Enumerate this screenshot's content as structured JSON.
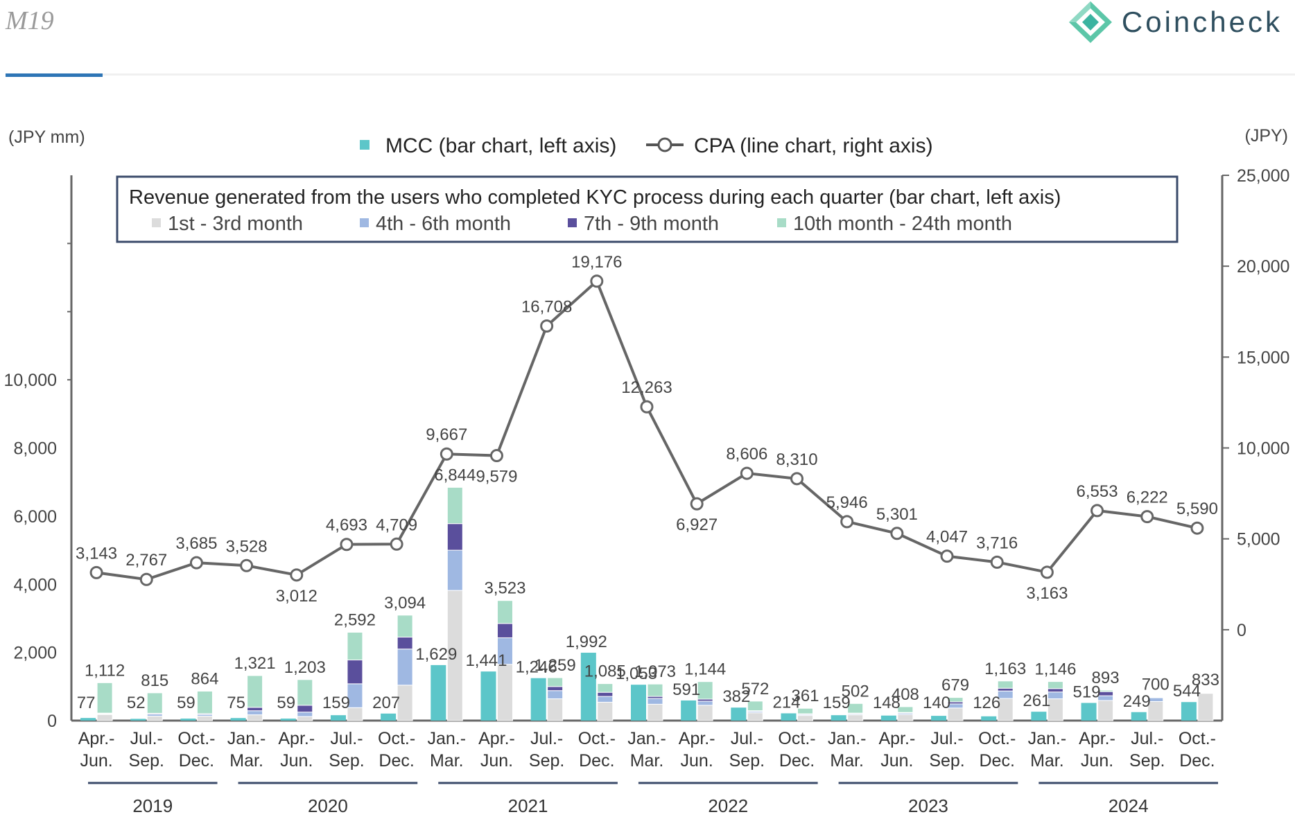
{
  "page": {
    "label": "M19",
    "brand": "Coincheck"
  },
  "colors": {
    "mcc": "#5cc6c9",
    "m1_3": "#dcdcdc",
    "m4_6": "#9fb8e2",
    "m7_9": "#5a4f9c",
    "m10_24": "#a8dcc7",
    "cpa_line": "#666666"
  },
  "chart_data": {
    "type": "bar+line",
    "left_axis_unit": "(JPY mm)",
    "right_axis_unit": "(JPY)",
    "left_ticks": [
      "0",
      "2,000",
      "4,000",
      "6,000",
      "8,000",
      "10,000"
    ],
    "right_ticks": [
      "0",
      "5,000",
      "10,000",
      "15,000",
      "20,000",
      "25,000"
    ],
    "left_range": [
      0,
      16000
    ],
    "right_range": [
      -5000,
      25000
    ],
    "legend": {
      "mcc": "MCC (bar chart, left axis)",
      "cpa": "CPA (line chart, right axis)"
    },
    "box": {
      "title": "Revenue generated from the users who completed KYC process during each quarter (bar chart, left axis)",
      "items": [
        "1st - 3rd month",
        "4th - 6th month",
        "7th - 9th month",
        "10th month - 24th month"
      ]
    },
    "years": [
      {
        "label": "2019",
        "start": 0,
        "end": 2
      },
      {
        "label": "2020",
        "start": 3,
        "end": 6
      },
      {
        "label": "2021",
        "start": 7,
        "end": 10
      },
      {
        "label": "2022",
        "start": 11,
        "end": 14
      },
      {
        "label": "2023",
        "start": 15,
        "end": 18
      },
      {
        "label": "2024",
        "start": 19,
        "end": 22
      }
    ],
    "quarters": [
      {
        "q1": "Apr.-",
        "q2": "Jun.",
        "mcc": 77,
        "mcc_label": "77",
        "stack": [
          180,
          20,
          20,
          892
        ],
        "total_label": "1,112",
        "cpa": 3143,
        "cpa_label": "3,143"
      },
      {
        "q1": "Jul.-",
        "q2": "Sep.",
        "mcc": 52,
        "mcc_label": "52",
        "stack": [
          130,
          60,
          25,
          600
        ],
        "total_label": "815",
        "cpa": 2767,
        "cpa_label": "2,767"
      },
      {
        "q1": "Oct.-",
        "q2": "Dec.",
        "mcc": 59,
        "mcc_label": "59",
        "stack": [
          130,
          50,
          25,
          659
        ],
        "total_label": "864",
        "cpa": 3685,
        "cpa_label": "3,685"
      },
      {
        "q1": "Jan.-",
        "q2": "Mar.",
        "mcc": 75,
        "mcc_label": "75",
        "stack": [
          170,
          120,
          100,
          931
        ],
        "total_label": "1,321",
        "cpa": 3528,
        "cpa_label": "3,528"
      },
      {
        "q1": "Apr.-",
        "q2": "Jun.",
        "mcc": 59,
        "mcc_label": "59",
        "stack": [
          120,
          130,
          200,
          753
        ],
        "total_label": "1,203",
        "cpa": 3012,
        "cpa_label": "3,012"
      },
      {
        "q1": "Jul.-",
        "q2": "Sep.",
        "mcc": 159,
        "mcc_label": "159",
        "stack": [
          380,
          700,
          700,
          812
        ],
        "total_label": "2,592",
        "cpa": 4693,
        "cpa_label": "4,693"
      },
      {
        "q1": "Oct.-",
        "q2": "Dec.",
        "mcc": 207,
        "mcc_label": "207",
        "stack": [
          1040,
          1060,
          350,
          644
        ],
        "total_label": "3,094",
        "cpa": 4709,
        "cpa_label": "4,709"
      },
      {
        "q1": "Jan.-",
        "q2": "Mar.",
        "mcc": 1629,
        "mcc_label": "1,629",
        "stack": [
          3820,
          1180,
          780,
          1064
        ],
        "total_label": "6,844",
        "cpa": 9667,
        "cpa_label": "9,667"
      },
      {
        "q1": "Apr.-",
        "q2": "Jun.",
        "mcc": 1441,
        "mcc_label": "1,441",
        "stack": [
          1650,
          780,
          420,
          673
        ],
        "total_label": "3,523",
        "cpa": 9579,
        "cpa_label": "9,579"
      },
      {
        "q1": "Jul.-",
        "q2": "Sep.",
        "mcc": 1246,
        "mcc_label": "1,246",
        "stack": [
          640,
          240,
          120,
          259
        ],
        "total_label": "1,259",
        "cpa": 16708,
        "cpa_label": "16,708"
      },
      {
        "q1": "Oct.-",
        "q2": "Dec.",
        "mcc": 1992,
        "mcc_label": "1,992",
        "stack": [
          540,
          170,
          120,
          255
        ],
        "total_label": "1,085",
        "cpa": 19176,
        "cpa_label": "19,176"
      },
      {
        "q1": "Jan.-",
        "q2": "Mar.",
        "mcc": 1053,
        "mcc_label": "1,053",
        "stack": [
          480,
          170,
          60,
          363
        ],
        "total_label": "1,073",
        "cpa": 12263,
        "cpa_label": "12,263"
      },
      {
        "q1": "Apr.-",
        "q2": "Jun.",
        "mcc": 591,
        "mcc_label": "591",
        "stack": [
          450,
          120,
          60,
          514
        ],
        "total_label": "1,144",
        "cpa": 6927,
        "cpa_label": "6,927"
      },
      {
        "q1": "Jul.-",
        "q2": "Sep.",
        "mcc": 382,
        "mcc_label": "382",
        "stack": [
          230,
          40,
          20,
          282
        ],
        "total_label": "572",
        "cpa": 8606,
        "cpa_label": "8,606"
      },
      {
        "q1": "Oct.-",
        "q2": "Dec.",
        "mcc": 214,
        "mcc_label": "214",
        "stack": [
          150,
          30,
          20,
          161
        ],
        "total_label": "361",
        "cpa": 8310,
        "cpa_label": "8,310"
      },
      {
        "q1": "Jan.-",
        "q2": "Mar.",
        "mcc": 159,
        "mcc_label": "159",
        "stack": [
          170,
          30,
          20,
          282
        ],
        "total_label": "502",
        "cpa": 5946,
        "cpa_label": "5,946"
      },
      {
        "q1": "Apr.-",
        "q2": "Jun.",
        "mcc": 148,
        "mcc_label": "148",
        "stack": [
          180,
          40,
          20,
          168
        ],
        "total_label": "408",
        "cpa": 5301,
        "cpa_label": "5,301"
      },
      {
        "q1": "Jul.-",
        "q2": "Sep.",
        "mcc": 140,
        "mcc_label": "140",
        "stack": [
          370,
          120,
          60,
          129
        ],
        "total_label": "679",
        "cpa": 4047,
        "cpa_label": "4,047"
      },
      {
        "q1": "Oct.-",
        "q2": "Dec.",
        "mcc": 126,
        "mcc_label": "126",
        "stack": [
          650,
          220,
          80,
          213
        ],
        "total_label": "1,163",
        "cpa": 3716,
        "cpa_label": "3,716"
      },
      {
        "q1": "Jan.-",
        "q2": "Mar.",
        "mcc": 261,
        "mcc_label": "261",
        "stack": [
          640,
          200,
          100,
          206
        ],
        "total_label": "1,146",
        "cpa": 3163,
        "cpa_label": "3,163"
      },
      {
        "q1": "Apr.-",
        "q2": "Jun.",
        "mcc": 519,
        "mcc_label": "519",
        "stack": [
          590,
          140,
          120,
          43
        ],
        "total_label": "893",
        "cpa": 6553,
        "cpa_label": "6,553"
      },
      {
        "q1": "Jul.-",
        "q2": "Sep.",
        "mcc": 249,
        "mcc_label": "249",
        "stack": [
          560,
          110,
          20,
          10
        ],
        "total_label": "700",
        "cpa": 6222,
        "cpa_label": "6,222"
      },
      {
        "q1": "Oct.-",
        "q2": "Dec.",
        "mcc": 544,
        "mcc_label": "544",
        "stack": [
          800,
          20,
          10,
          3
        ],
        "total_label": "833",
        "cpa": 5590,
        "cpa_label": "5,590"
      }
    ]
  }
}
